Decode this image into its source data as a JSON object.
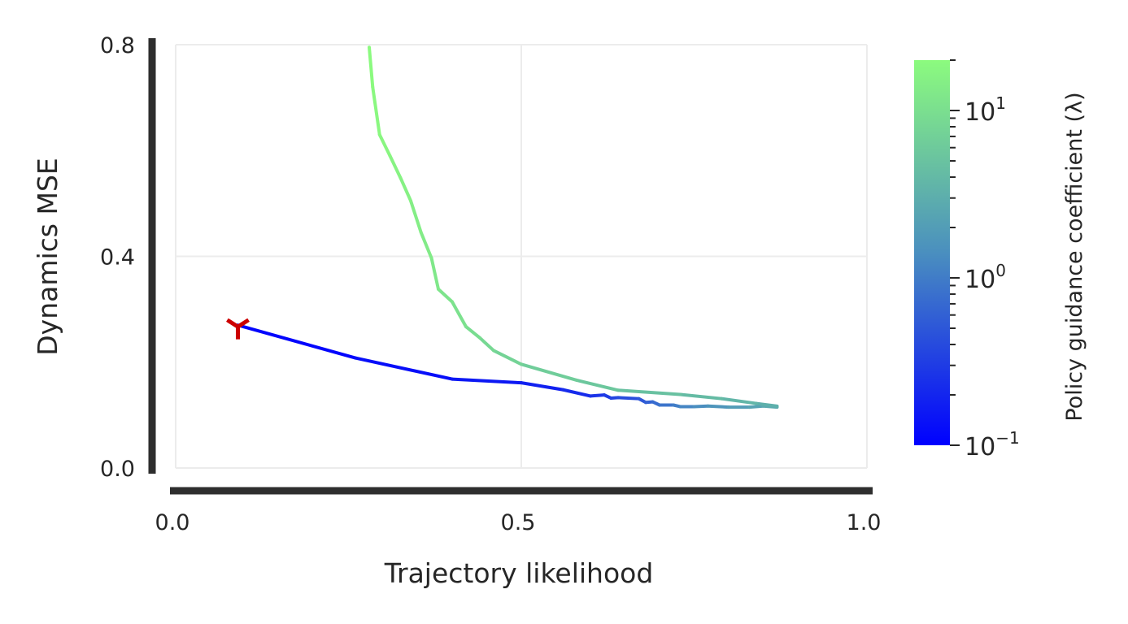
{
  "chart_data": {
    "type": "line",
    "xlabel": "Trajectory likelihood",
    "ylabel": "Dynamics MSE",
    "xlim": [
      0.0,
      1.0
    ],
    "ylim": [
      0.0,
      0.8
    ],
    "xticks": [
      0.0,
      0.5,
      1.0
    ],
    "xtick_labels": [
      "0.0",
      "0.5",
      "1.0"
    ],
    "yticks": [
      0.0,
      0.4,
      0.8
    ],
    "ytick_labels": [
      "0.0",
      "0.4",
      "0.8"
    ],
    "grid": true,
    "colorbar": {
      "label": "Policy guidance coefficient (λ)",
      "scale": "log",
      "range": [
        0.1,
        20
      ],
      "ticks": [
        {
          "value": 0.1,
          "base": "10",
          "exp": "−1"
        },
        {
          "value": 1,
          "base": "10",
          "exp": "0"
        },
        {
          "value": 10,
          "base": "10",
          "exp": "1"
        }
      ],
      "color_low": "#0000ff",
      "color_mid": "#4a8fbf",
      "color_high": "#8cfb7e"
    },
    "series": [
      {
        "x": [
          0.09,
          0.26,
          0.4,
          0.5,
          0.56,
          0.6,
          0.62,
          0.63,
          0.64,
          0.67,
          0.68,
          0.69,
          0.7,
          0.72,
          0.73,
          0.75,
          0.77,
          0.8,
          0.83,
          0.85,
          0.87
        ],
        "y": [
          0.27,
          0.208,
          0.168,
          0.161,
          0.148,
          0.136,
          0.138,
          0.132,
          0.133,
          0.131,
          0.124,
          0.125,
          0.119,
          0.119,
          0.116,
          0.116,
          0.117,
          0.115,
          0.115,
          0.117,
          0.115
        ],
        "lambda": [
          0.1,
          0.12,
          0.14,
          0.17,
          0.2,
          0.24,
          0.28,
          0.32,
          0.38,
          0.45,
          0.55,
          0.65,
          0.8,
          0.95,
          1.1,
          1.3,
          1.5,
          1.8,
          2.1,
          2.5,
          3.0
        ]
      },
      {
        "x": [
          0.87,
          0.84,
          0.79,
          0.73,
          0.64,
          0.58,
          0.5,
          0.46,
          0.44,
          0.42,
          0.4,
          0.38,
          0.37,
          0.355,
          0.34,
          0.325,
          0.31,
          0.295,
          0.285,
          0.28
        ],
        "y": [
          0.117,
          0.122,
          0.131,
          0.139,
          0.147,
          0.166,
          0.196,
          0.222,
          0.246,
          0.267,
          0.314,
          0.338,
          0.397,
          0.445,
          0.505,
          0.549,
          0.59,
          0.63,
          0.72,
          0.795
        ],
        "lambda": [
          3.0,
          3.4,
          3.9,
          4.5,
          5.2,
          6.0,
          7.0,
          8.0,
          9.0,
          10,
          11,
          12,
          13,
          14,
          15,
          16,
          17,
          18,
          19,
          20
        ]
      }
    ],
    "start_marker": {
      "x": 0.09,
      "y": 0.27,
      "color": "#cc0000"
    }
  }
}
